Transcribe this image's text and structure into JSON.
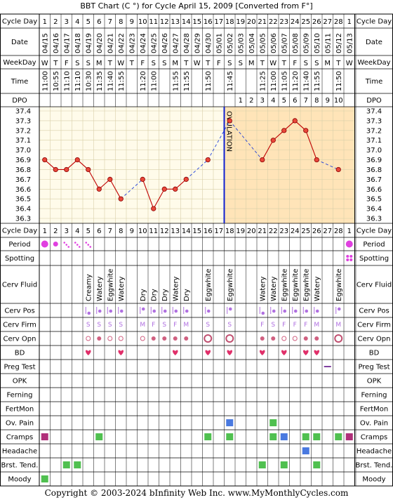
{
  "title": "BBT Chart (C °) for Cycle April 15, 2009  [Converted from F°]",
  "footer": "Copyright © 2003-2024 bInfinity Web Inc.    www.MyMonthlyCycles.com",
  "row_labels": {
    "cycle_day": "Cycle Day",
    "date": "Date",
    "weekday": "WeekDay",
    "time": "Time",
    "dpo": "DPO",
    "period": "Period",
    "spotting": "Spotting",
    "cerv_fluid": "Cerv Fluid",
    "cerv_pos": "Cerv Pos",
    "cerv_firm": "Cerv Firm",
    "cerv_opn": "Cerv Opn",
    "bd": "BD",
    "preg_test": "Preg Test",
    "opk": "OPK",
    "ferning": "Ferning",
    "fertmon": "FertMon",
    "ov_pain": "Ov. Pain",
    "cramps": "Cramps",
    "headache": "Headache",
    "brst_tend": "Brst. Tend.",
    "moody": "Moody"
  },
  "chart_data": {
    "type": "line",
    "title": "BBT Chart (C °) for Cycle April 15, 2009  [Converted from F°]",
    "cycle_days": [
      1,
      2,
      3,
      4,
      5,
      6,
      7,
      8,
      9,
      10,
      11,
      12,
      13,
      14,
      15,
      16,
      17,
      18,
      19,
      20,
      21,
      22,
      23,
      24,
      25,
      26,
      27,
      28,
      1
    ],
    "dates": [
      "04/15",
      "04/16",
      "04/17",
      "04/18",
      "04/19",
      "04/20",
      "04/21",
      "04/22",
      "04/23",
      "04/24",
      "04/25",
      "04/26",
      "04/27",
      "04/28",
      "04/29",
      "04/30",
      "05/01",
      "05/02",
      "05/03",
      "05/04",
      "05/05",
      "05/06",
      "05/07",
      "05/08",
      "05/09",
      "05/10",
      "05/11",
      "05/12",
      "05/13"
    ],
    "weekdays": [
      "W",
      "T",
      "F",
      "S",
      "S",
      "M",
      "T",
      "W",
      "T",
      "F",
      "S",
      "S",
      "M",
      "T",
      "W",
      "T",
      "F",
      "S",
      "S",
      "M",
      "T",
      "W",
      "T",
      "F",
      "S",
      "S",
      "M",
      "T",
      "W"
    ],
    "times": [
      "11:00",
      "10:55",
      "11:10",
      "11:10",
      "10:30",
      "11:35",
      "11:40",
      "11:55",
      "",
      "11:20",
      "11:00",
      "",
      "11:55",
      "11:55",
      "",
      "11:50",
      "",
      "11:45",
      "",
      "",
      "11:25",
      "11:00",
      "11:05",
      "11:20",
      "11:40",
      "11:55",
      "",
      "11:50",
      ""
    ],
    "dpo": [
      "",
      "",
      "",
      "",
      "",
      "",
      "",
      "",
      "",
      "",
      "",
      "",
      "",
      "",
      "",
      "",
      "",
      "",
      "1",
      "2",
      "3",
      "4",
      "5",
      "6",
      "7",
      "8",
      "9",
      "10",
      ""
    ],
    "temperatures": [
      36.9,
      36.8,
      36.8,
      36.9,
      36.8,
      36.6,
      36.7,
      36.5,
      null,
      36.7,
      36.4,
      36.6,
      36.6,
      36.7,
      null,
      36.9,
      null,
      37.3,
      null,
      null,
      36.9,
      37.1,
      37.2,
      37.3,
      37.2,
      36.9,
      null,
      36.8,
      null
    ],
    "ylim": [
      36.3,
      37.4
    ],
    "y_ticks": [
      "37.4",
      "37.3",
      "37.2",
      "37.1",
      "37.0",
      "36.9",
      "36.8",
      "36.7",
      "36.6",
      "36.5",
      "36.4",
      "36.3"
    ],
    "ovulation_day": 18,
    "ovulation_label": "OVULATION",
    "coverline": null,
    "series": [
      {
        "values": [
          36.9,
          36.8,
          36.8,
          36.9,
          36.8,
          36.6,
          36.7,
          36.5,
          null,
          36.7,
          36.4,
          36.6,
          36.6,
          36.7,
          null,
          36.9,
          null,
          37.3,
          null,
          null,
          36.9,
          37.1,
          37.2,
          37.3,
          37.2,
          36.9,
          null,
          36.8,
          null
        ]
      }
    ],
    "period": [
      "heavy",
      "medium",
      "light",
      "light",
      "light",
      "",
      "",
      "",
      "",
      "",
      "",
      "",
      "",
      "",
      "",
      "",
      "",
      "",
      "",
      "",
      "",
      "",
      "",
      "",
      "",
      "",
      "",
      "",
      "heavy"
    ],
    "spotting": [
      false,
      false,
      false,
      false,
      false,
      false,
      false,
      false,
      false,
      false,
      false,
      false,
      false,
      false,
      false,
      false,
      false,
      false,
      false,
      false,
      false,
      false,
      false,
      false,
      false,
      false,
      false,
      false,
      true
    ],
    "cerv_fluid": [
      "",
      "",
      "",
      "",
      "Creamy",
      "Watery",
      "Eggwhite",
      "Watery",
      "",
      "Dry",
      "Dry",
      "Dry",
      "Watery",
      "Dry",
      "",
      "Eggwhite",
      "",
      "Eggwhite",
      "",
      "",
      "Watery",
      "Watery",
      "Eggwhite",
      "Eggwhite",
      "Eggwhite",
      "Watery",
      "",
      "Eggwhite",
      ""
    ],
    "cerv_pos": [
      "",
      "",
      "",
      "",
      "low",
      "med",
      "med",
      "med",
      "",
      "high",
      "med",
      "med",
      "med",
      "med",
      "",
      "med",
      "",
      "high",
      "",
      "",
      "low",
      "med",
      "med",
      "med",
      "med",
      "med",
      "",
      "high",
      ""
    ],
    "cerv_firm": [
      "",
      "",
      "",
      "",
      "S",
      "S",
      "S",
      "S",
      "",
      "M",
      "F",
      "S",
      "F",
      "M",
      "",
      "S",
      "",
      "S",
      "",
      "",
      "F",
      "S",
      "F",
      "F",
      "F",
      "M",
      "",
      "M",
      ""
    ],
    "cerv_opn": [
      "",
      "",
      "",
      "",
      "open",
      "dot",
      "open",
      "open",
      "",
      "open",
      "dot",
      "dot",
      "dot",
      "dot",
      "",
      "big",
      "",
      "big",
      "",
      "",
      "dot",
      "dot",
      "open",
      "open",
      "dot",
      "dot",
      "",
      "big",
      ""
    ],
    "bd": [
      false,
      false,
      false,
      false,
      true,
      false,
      false,
      true,
      false,
      false,
      false,
      false,
      true,
      false,
      false,
      true,
      false,
      true,
      false,
      false,
      true,
      false,
      true,
      false,
      true,
      true,
      false,
      false,
      false
    ],
    "preg_test": [
      false,
      false,
      false,
      false,
      false,
      false,
      false,
      false,
      false,
      false,
      false,
      false,
      false,
      false,
      false,
      false,
      false,
      false,
      false,
      false,
      false,
      false,
      false,
      false,
      false,
      false,
      true,
      false,
      false
    ],
    "opk": [],
    "ferning": [],
    "fertmon": [],
    "ov_pain": [
      false,
      false,
      false,
      false,
      false,
      false,
      false,
      false,
      false,
      false,
      false,
      false,
      false,
      false,
      false,
      false,
      false,
      true,
      false,
      false,
      false,
      true,
      false,
      false,
      false,
      false,
      false,
      false,
      false
    ],
    "cramps": [
      true,
      false,
      false,
      false,
      false,
      true,
      false,
      false,
      false,
      false,
      false,
      false,
      false,
      false,
      false,
      true,
      false,
      true,
      false,
      false,
      false,
      true,
      true,
      false,
      true,
      true,
      false,
      true,
      true
    ],
    "headache": [
      false,
      false,
      false,
      false,
      false,
      false,
      false,
      false,
      false,
      false,
      false,
      false,
      false,
      false,
      false,
      false,
      false,
      false,
      false,
      false,
      false,
      false,
      false,
      false,
      true,
      false,
      false,
      false,
      false
    ],
    "brst_tend": [
      false,
      false,
      true,
      true,
      false,
      false,
      false,
      false,
      false,
      false,
      false,
      false,
      false,
      false,
      false,
      false,
      false,
      false,
      false,
      false,
      true,
      false,
      true,
      false,
      false,
      true,
      false,
      false,
      false
    ],
    "moody": [
      true,
      false,
      false,
      false,
      false,
      false,
      false,
      false,
      false,
      false,
      false,
      false,
      false,
      false,
      false,
      false,
      false,
      false,
      false,
      false,
      false,
      false,
      false,
      false,
      false,
      false,
      false,
      false,
      false
    ],
    "colors": {
      "grid": "#000000",
      "plot_bg": "#fffbea",
      "luteal_bg": "#ffe4b8",
      "line": "#c00000",
      "point": "#e8473a",
      "dash": "#1f3fd9",
      "ovulation": "#1020d0",
      "period": "#e040e0",
      "bd": "#e0306a",
      "cramps": "#50c050",
      "blue_square": "#4a7ae0",
      "cerv": "#b070e0"
    }
  }
}
